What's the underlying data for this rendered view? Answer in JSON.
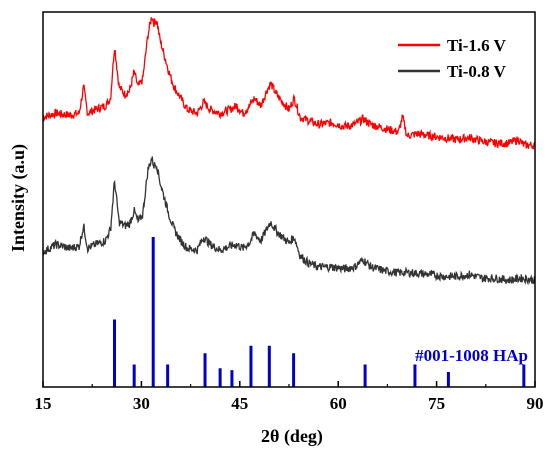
{
  "chart_data": {
    "type": "line",
    "xlabel": "2θ (deg)",
    "ylabel": "Intensity (a.u)",
    "xlim": [
      15,
      90
    ],
    "ylim": [
      0,
      100
    ],
    "xticks": [
      15,
      30,
      45,
      60,
      75,
      90
    ],
    "grid": false,
    "legend_position": "top-right",
    "series": [
      {
        "name": "Ti-1.6 V",
        "color": "#ff0000",
        "x": [
          15,
          17,
          19,
          20.5,
          21.2,
          21.8,
          23,
          24.5,
          25.3,
          25.9,
          26.6,
          27.5,
          28.2,
          28.9,
          29.5,
          30.2,
          31,
          31.6,
          31.9,
          32.3,
          32.8,
          33.4,
          34.2,
          35,
          36,
          37,
          38.5,
          39.5,
          40.5,
          42,
          43.5,
          44.5,
          45.5,
          46.5,
          47.2,
          48.2,
          49.1,
          49.7,
          50.6,
          51.5,
          52.5,
          53.3,
          54.2,
          55.5,
          57,
          59,
          61,
          62.5,
          63.8,
          65,
          67,
          69.2,
          69.8,
          70.5,
          72,
          74,
          76,
          78,
          80,
          82,
          84,
          86,
          87.5,
          88.3,
          90
        ],
        "y": [
          72,
          73,
          72.5,
          73,
          80,
          73,
          74,
          75,
          77,
          91,
          80,
          78,
          79,
          84,
          80,
          82,
          94,
          99,
          97,
          98,
          93,
          89,
          84,
          80,
          77,
          74,
          73,
          76,
          74,
          73,
          74,
          75,
          73,
          75,
          77,
          75,
          79,
          81,
          78,
          76,
          74,
          77,
          72,
          71,
          70,
          70.5,
          69.5,
          70,
          71.5,
          70,
          69,
          68,
          72,
          67,
          67.5,
          67,
          66.5,
          66,
          66.5,
          65.5,
          65,
          65,
          66,
          64.5,
          64.5
        ]
      },
      {
        "name": "Ti-0.8 V",
        "color": "#333333",
        "x": [
          15,
          17,
          19,
          20.5,
          21.2,
          21.8,
          23,
          24.5,
          25.3,
          25.9,
          26.6,
          27.5,
          28.2,
          28.9,
          29.5,
          30.2,
          31,
          31.6,
          31.9,
          32.3,
          32.8,
          33.4,
          34.2,
          35,
          36,
          37,
          38.5,
          39.5,
          40.5,
          42,
          43.5,
          44.5,
          45.5,
          46.5,
          47.2,
          48.2,
          49.1,
          49.7,
          50.6,
          51.5,
          52.5,
          53.3,
          54.2,
          55.5,
          57,
          59,
          61,
          62.5,
          63.8,
          65,
          67,
          69,
          71,
          74,
          76,
          78,
          80,
          82,
          84,
          86,
          88,
          90
        ],
        "y": [
          36,
          38,
          37,
          37.5,
          43,
          37,
          38,
          39,
          42,
          55,
          44,
          43,
          43.5,
          47,
          44,
          46,
          58,
          61,
          59,
          59.5,
          55,
          51,
          46,
          42,
          39,
          37,
          36.5,
          40,
          38,
          36.5,
          37.5,
          38,
          37,
          38.5,
          41,
          39,
          42,
          44,
          41.5,
          40,
          38.5,
          40,
          35,
          33,
          32,
          32,
          31.5,
          32,
          34,
          32,
          31,
          30.5,
          30.5,
          30,
          29.5,
          29.5,
          30,
          29,
          29,
          28.5,
          29,
          28.5
        ]
      }
    ],
    "reference": {
      "name": "#001-1008 HAp",
      "color": "#0000cc",
      "x": [
        25.9,
        28.9,
        31.8,
        34.0,
        39.7,
        42.0,
        43.8,
        46.7,
        49.5,
        53.2,
        64.1,
        71.7,
        76.8,
        88.3
      ],
      "y": [
        18,
        6,
        40,
        6,
        9,
        5,
        4.5,
        11,
        11,
        9,
        6,
        6,
        4,
        6
      ]
    }
  }
}
